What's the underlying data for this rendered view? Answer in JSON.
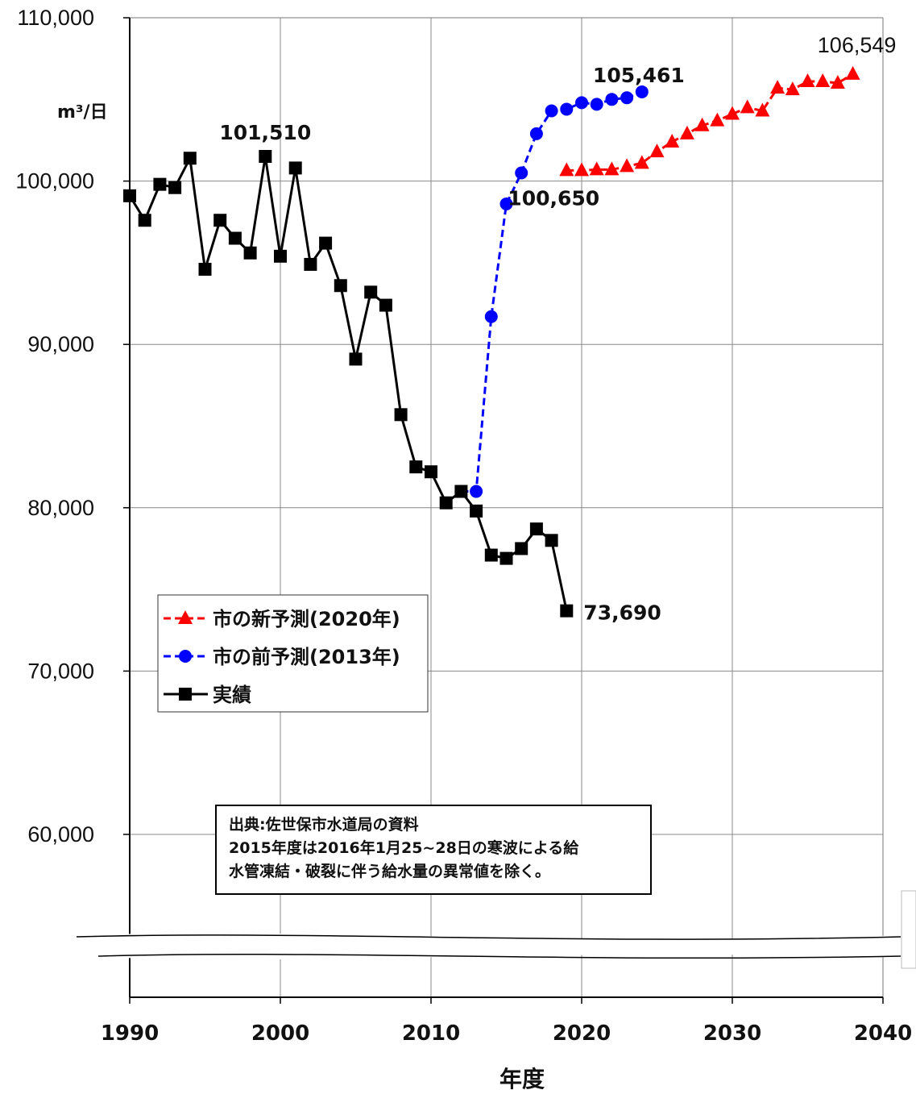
{
  "chart_data": {
    "type": "line",
    "ylabel": "m³/日",
    "xlabel": "年度",
    "x_ticks": [
      "1990",
      "2000",
      "2010",
      "2020",
      "2030",
      "2040"
    ],
    "y_ticks": [
      "60,000",
      "70,000",
      "80,000",
      "90,000",
      "100,000",
      "110,000"
    ],
    "xlim": [
      1990,
      2040
    ],
    "ylim": [
      55000,
      110000
    ],
    "axis_break": true,
    "grid": true,
    "legend_position": "middle-left",
    "series": [
      {
        "name": "市の新予測(2020年)",
        "color": "#ff0000",
        "line_style": "dashed",
        "marker": "triangle",
        "x": [
          2019,
          2020,
          2021,
          2022,
          2023,
          2024,
          2025,
          2026,
          2027,
          2028,
          2029,
          2030,
          2031,
          2032,
          2033,
          2034,
          2035,
          2036,
          2037,
          2038
        ],
        "values": [
          100650,
          100650,
          100700,
          100700,
          100900,
          101100,
          101800,
          102400,
          102900,
          103400,
          103700,
          104100,
          104500,
          104300,
          105700,
          105600,
          106100,
          106100,
          106000,
          106549
        ]
      },
      {
        "name": "市の前予測(2013年)",
        "color": "#0000ff",
        "line_style": "dashed",
        "marker": "circle",
        "x": [
          2012,
          2013,
          2014,
          2015,
          2016,
          2017,
          2018,
          2019,
          2020,
          2021,
          2022,
          2023,
          2024
        ],
        "values": [
          81000,
          81000,
          91700,
          98600,
          100500,
          102900,
          104300,
          104400,
          104800,
          104700,
          105000,
          105100,
          105461
        ]
      },
      {
        "name": "実績",
        "color": "#000000",
        "line_style": "solid",
        "marker": "square",
        "x": [
          1990,
          1991,
          1992,
          1993,
          1994,
          1995,
          1996,
          1997,
          1998,
          1999,
          2000,
          2001,
          2002,
          2003,
          2004,
          2005,
          2006,
          2007,
          2008,
          2009,
          2010,
          2011,
          2012,
          2013,
          2014,
          2015,
          2016,
          2017,
          2018,
          2019
        ],
        "values": [
          99100,
          97600,
          99800,
          99600,
          101400,
          94600,
          97600,
          96500,
          95600,
          101510,
          95400,
          100800,
          94900,
          96200,
          93600,
          89100,
          93200,
          92400,
          85700,
          82500,
          82200,
          80300,
          81000,
          79800,
          77100,
          76900,
          77500,
          78700,
          78000,
          73690
        ]
      }
    ],
    "annotations": [
      {
        "text": "101,510",
        "x": 1999,
        "y": 101510
      },
      {
        "text": "105,461",
        "x": 2024,
        "y": 105461
      },
      {
        "text": "100,650",
        "x": 2019,
        "y": 100650
      },
      {
        "text": "106,549",
        "x": 2038,
        "y": 106549
      },
      {
        "text": "73,690",
        "x": 2019,
        "y": 73690
      }
    ],
    "note": [
      "出典:佐世保市水道局の資料",
      "2015年度は2016年1月25~28日の寒波による給",
      "水管凍結・破裂に伴う給水量の異常値を除く。"
    ]
  }
}
